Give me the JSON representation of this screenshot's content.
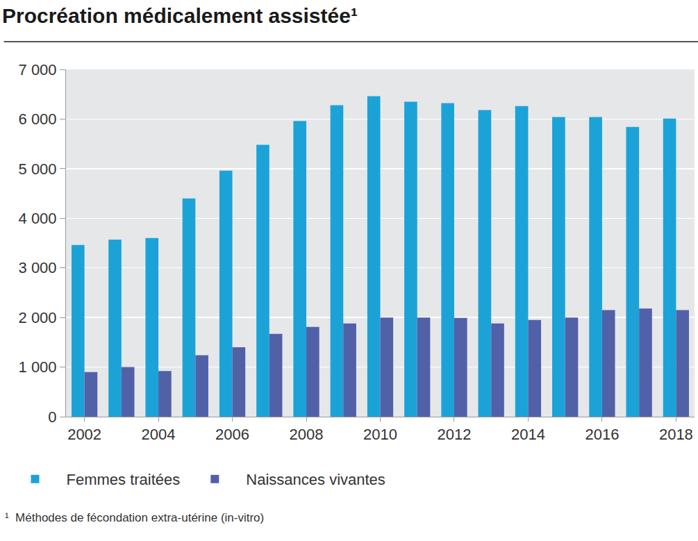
{
  "chart_data": {
    "type": "bar",
    "title": "Procréation médicalement assistée¹",
    "footnote": "¹  Méthodes de fécondation extra-utérine (in-vitro)",
    "categories": [
      "2002",
      null,
      "2004",
      null,
      "2006",
      null,
      "2008",
      null,
      "2010",
      null,
      "2012",
      null,
      "2014",
      null,
      "2016",
      null,
      "2018"
    ],
    "series": [
      {
        "name": "Femmes traitées",
        "color": "#1ba3d8",
        "values": [
          3460,
          3570,
          3600,
          4400,
          4960,
          5480,
          5960,
          6280,
          6460,
          6350,
          6320,
          6180,
          6260,
          6040,
          6040,
          5840,
          6010
        ]
      },
      {
        "name": "Naissances vivantes",
        "color": "#5161a8",
        "values": [
          900,
          1000,
          920,
          1240,
          1400,
          1670,
          1810,
          1880,
          2000,
          2000,
          1990,
          1880,
          1950,
          2000,
          2150,
          2180,
          2150
        ]
      }
    ],
    "ylim": [
      0,
      7000
    ],
    "yticks": [
      0,
      {
        "value": 1000,
        "label": "1 000"
      },
      {
        "value": 2000,
        "label": "2 000"
      },
      {
        "value": 3000,
        "label": "3 000"
      },
      {
        "value": 4000,
        "label": "4 000"
      },
      {
        "value": 5000,
        "label": "5 000"
      },
      {
        "value": 6000,
        "label": "6 000"
      },
      {
        "value": 7000,
        "label": "7 000"
      }
    ],
    "grid": true,
    "legend": "bottom"
  }
}
